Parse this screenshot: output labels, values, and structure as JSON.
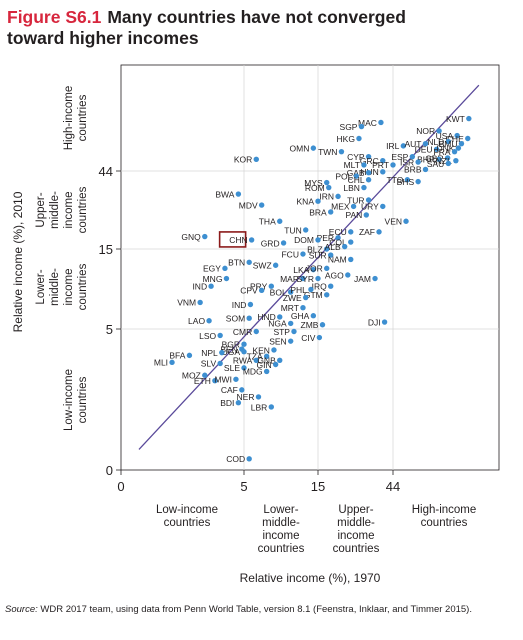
{
  "figure": {
    "label": "Figure S6.1",
    "title_line1": "Many countries have not converged",
    "title_line2": "toward higher incomes"
  },
  "chart_data": {
    "type": "scatter",
    "xlabel": "Relative income (%), 1970",
    "ylabel": "Relative income (%), 2010",
    "scale": "piecewise by income group",
    "x_ticks": [
      "0",
      "5",
      "15",
      "44"
    ],
    "y_ticks": [
      "0",
      "5",
      "15",
      "44"
    ],
    "x_groups": [
      [
        "Low-income",
        "countries"
      ],
      [
        "Lower-",
        "middle-",
        "income",
        "countries"
      ],
      [
        "Upper-",
        "middle-",
        "income",
        "countries"
      ],
      [
        "High-income",
        "countries"
      ]
    ],
    "y_groups": [
      [
        "Low-income",
        "countries"
      ],
      [
        "Lower-",
        "middle-",
        "income",
        "countries"
      ],
      [
        "Upper-",
        "middle-",
        "income",
        "countries"
      ],
      [
        "High-income",
        "countries"
      ]
    ],
    "reference_line": "45-degree line",
    "highlighted": "CHN",
    "points": [
      {
        "c": "MAC",
        "x": 37,
        "y": 88
      },
      {
        "c": "KWT",
        "x": 130,
        "y": 93
      },
      {
        "c": "SGP",
        "x": 28,
        "y": 83
      },
      {
        "c": "NOR",
        "x": 85,
        "y": 78
      },
      {
        "c": "USA",
        "x": 110,
        "y": 73
      },
      {
        "c": "CHE",
        "x": 128,
        "y": 70
      },
      {
        "c": "HKG",
        "x": 27,
        "y": 70
      },
      {
        "c": "IRL",
        "x": 51,
        "y": 63
      },
      {
        "c": "AUT",
        "x": 70,
        "y": 65
      },
      {
        "c": "NLD",
        "x": 97,
        "y": 67
      },
      {
        "c": "BMU",
        "x": 117,
        "y": 65
      },
      {
        "c": "OMN",
        "x": 14,
        "y": 61
      },
      {
        "c": "TWN",
        "x": 21,
        "y": 58
      },
      {
        "c": "DEU",
        "x": 82,
        "y": 60
      },
      {
        "c": "DNK",
        "x": 112,
        "y": 61
      },
      {
        "c": "FRA",
        "x": 106,
        "y": 58
      },
      {
        "c": "KOR",
        "x": 6,
        "y": 52
      },
      {
        "c": "CYP",
        "x": 31,
        "y": 54
      },
      {
        "c": "ESP",
        "x": 58,
        "y": 54
      },
      {
        "c": "GBR",
        "x": 96,
        "y": 53
      },
      {
        "c": "BHR",
        "x": 85,
        "y": 52
      },
      {
        "c": "NZL",
        "x": 108,
        "y": 51
      },
      {
        "c": "GRC",
        "x": 38,
        "y": 51
      },
      {
        "c": "ISR",
        "x": 63,
        "y": 50
      },
      {
        "c": "SAU",
        "x": 97,
        "y": 49
      },
      {
        "c": "MLT",
        "x": 29,
        "y": 48
      },
      {
        "c": "PRT",
        "x": 44,
        "y": 48
      },
      {
        "c": "BRB",
        "x": 70,
        "y": 45
      },
      {
        "c": "HUN",
        "x": 38,
        "y": 43.5
      },
      {
        "c": "GAB",
        "x": 31,
        "y": 43
      },
      {
        "c": "TTO",
        "x": 54,
        "y": 39
      },
      {
        "c": "BHS",
        "x": 63,
        "y": 38
      },
      {
        "c": "POL",
        "x": 26,
        "y": 41
      },
      {
        "c": "CHL",
        "x": 31,
        "y": 39
      },
      {
        "c": "MYS",
        "x": 17,
        "y": 37.5
      },
      {
        "c": "ROM",
        "x": 17.5,
        "y": 35
      },
      {
        "c": "LBN",
        "x": 29,
        "y": 35
      },
      {
        "c": "BWA",
        "x": 4.5,
        "y": 32
      },
      {
        "c": "KNA",
        "x": 15,
        "y": 29
      },
      {
        "c": "IRN",
        "x": 20,
        "y": 31
      },
      {
        "c": "MEX",
        "x": 25,
        "y": 27
      },
      {
        "c": "TUR",
        "x": 31,
        "y": 29.5
      },
      {
        "c": "URY",
        "x": 38,
        "y": 27
      },
      {
        "c": "MDV",
        "x": 6.5,
        "y": 27.5
      },
      {
        "c": "BRA",
        "x": 18,
        "y": 25
      },
      {
        "c": "PAN",
        "x": 30,
        "y": 24
      },
      {
        "c": "VEN",
        "x": 53,
        "y": 22
      },
      {
        "c": "THA",
        "x": 8.5,
        "y": 22
      },
      {
        "c": "TUN",
        "x": 12.5,
        "y": 19.5
      },
      {
        "c": "ECU",
        "x": 24,
        "y": 19
      },
      {
        "c": "ZAF",
        "x": 36,
        "y": 19
      },
      {
        "c": "PER",
        "x": 20,
        "y": 17.5
      },
      {
        "c": "COL",
        "x": 24,
        "y": 16.5
      },
      {
        "c": "GNQ",
        "x": 2.4,
        "y": 17.8
      },
      {
        "c": "CHN",
        "x": 5.6,
        "y": 17
      },
      {
        "c": "GRD",
        "x": 9,
        "y": 16.3
      },
      {
        "c": "DOM",
        "x": 15,
        "y": 17
      },
      {
        "c": "BLZ",
        "x": 17,
        "y": 15
      },
      {
        "c": "ALB",
        "x": 22,
        "y": 15.5
      },
      {
        "c": "FCU",
        "x": 12,
        "y": 14
      },
      {
        "c": "SUR",
        "x": 18,
        "y": 13.8
      },
      {
        "c": "NAM",
        "x": 24,
        "y": 13
      },
      {
        "c": "BTN",
        "x": 5.4,
        "y": 12.5
      },
      {
        "c": "SWZ",
        "x": 8,
        "y": 12
      },
      {
        "c": "EGY",
        "x": 3.5,
        "y": 11.5
      },
      {
        "c": "LKA",
        "x": 14,
        "y": 11.3
      },
      {
        "c": "JOR",
        "x": 17,
        "y": 11.5
      },
      {
        "c": "AGO",
        "x": 23,
        "y": 10.5
      },
      {
        "c": "JAM",
        "x": 34,
        "y": 10
      },
      {
        "c": "MNG",
        "x": 3.6,
        "y": 10
      },
      {
        "c": "MAR",
        "x": 12,
        "y": 10
      },
      {
        "c": "SYR",
        "x": 15,
        "y": 10
      },
      {
        "c": "IND",
        "x": 2.7,
        "y": 9
      },
      {
        "c": "PRY",
        "x": 7.5,
        "y": 9
      },
      {
        "c": "IRQ",
        "x": 18,
        "y": 9
      },
      {
        "c": "CPV",
        "x": 6.5,
        "y": 8.5
      },
      {
        "c": "BOL",
        "x": 10,
        "y": 8.3
      },
      {
        "c": "PHL",
        "x": 13.5,
        "y": 8.6
      },
      {
        "c": "GTM",
        "x": 17,
        "y": 8
      },
      {
        "c": "ZWE",
        "x": 12.5,
        "y": 7.7
      },
      {
        "c": "VNM",
        "x": 2.2,
        "y": 7.2
      },
      {
        "c": "IND",
        "x": 5.5,
        "y": 7
      },
      {
        "c": "MRT",
        "x": 12,
        "y": 6.7
      },
      {
        "c": "SOM",
        "x": 5.4,
        "y": 5.8
      },
      {
        "c": "HND",
        "x": 8.5,
        "y": 5.9
      },
      {
        "c": "GHA",
        "x": 14,
        "y": 6
      },
      {
        "c": "LAO",
        "x": 2.6,
        "y": 5.6
      },
      {
        "c": "NGA",
        "x": 10,
        "y": 5.4
      },
      {
        "c": "ZMB",
        "x": 16,
        "y": 5.3
      },
      {
        "c": "DJI",
        "x": 39,
        "y": 5.5
      },
      {
        "c": "CMR",
        "x": 6,
        "y": 4.8
      },
      {
        "c": "STP",
        "x": 10.5,
        "y": 4.8
      },
      {
        "c": "LSO",
        "x": 3.2,
        "y": 4.5
      },
      {
        "c": "CIV",
        "x": 15.3,
        "y": 4.35
      },
      {
        "c": "SEN",
        "x": 10,
        "y": 4.1
      },
      {
        "c": "BGR",
        "x": 5,
        "y": 3.9
      },
      {
        "c": "BEN",
        "x": 4.8,
        "y": 3.6
      },
      {
        "c": "KEN",
        "x": 7.8,
        "y": 3.55
      },
      {
        "c": "UGA",
        "x": 5,
        "y": 3.45
      },
      {
        "c": "NPL",
        "x": 3.3,
        "y": 3.4
      },
      {
        "c": "BFA",
        "x": 1.8,
        "y": 3.25
      },
      {
        "c": "TZA",
        "x": 7,
        "y": 3.2
      },
      {
        "c": "RWA",
        "x": 6,
        "y": 3.0
      },
      {
        "c": "GNB",
        "x": 8.5,
        "y": 3.0
      },
      {
        "c": "MLI",
        "x": 1.3,
        "y": 2.9
      },
      {
        "c": "SLV",
        "x": 3.2,
        "y": 2.85
      },
      {
        "c": "GIN",
        "x": 8,
        "y": 2.8
      },
      {
        "c": "SLE",
        "x": 5,
        "y": 2.65
      },
      {
        "c": "MDG",
        "x": 7,
        "y": 2.5
      },
      {
        "c": "MOZ",
        "x": 2.4,
        "y": 2.35
      },
      {
        "c": "ETH",
        "x": 2.9,
        "y": 2.15
      },
      {
        "c": "MWI",
        "x": 4.3,
        "y": 2.2
      },
      {
        "c": "CAF",
        "x": 4.8,
        "y": 1.85
      },
      {
        "c": "NER",
        "x": 6.2,
        "y": 1.65
      },
      {
        "c": "BDI",
        "x": 4.5,
        "y": 1.5
      },
      {
        "c": "LBR",
        "x": 7.5,
        "y": 1.4
      },
      {
        "c": "COD",
        "x": 5.4,
        "y": 0.6
      }
    ]
  },
  "source": {
    "lead": "Source:",
    "text": "WDR 2017 team, using data from Penn World Table, version 8.1 (Feenstra, Inklaar, and Timmer 2015)."
  }
}
